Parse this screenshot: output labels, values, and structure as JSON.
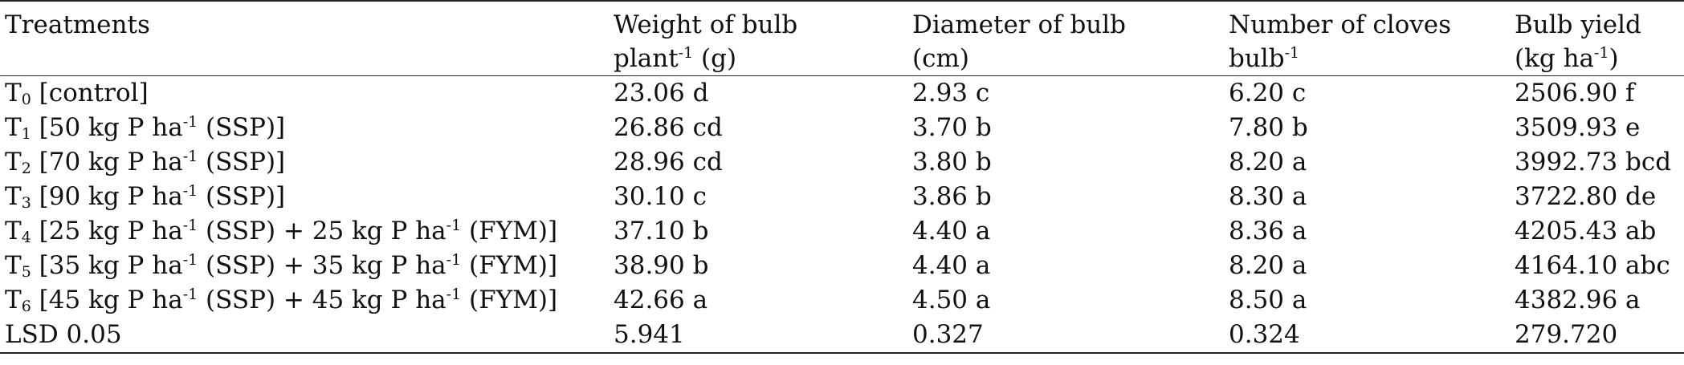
{
  "table": {
    "headers": [
      {
        "line1": "Treatments",
        "line2_main": "",
        "line2_sup": "",
        "line2_tail": ""
      },
      {
        "line1": "Weight of bulb",
        "line2_main": "plant",
        "line2_sup": "-1",
        "line2_tail": " (g)"
      },
      {
        "line1": "Diameter of bulb",
        "line2_main": "(cm)",
        "line2_sup": "",
        "line2_tail": ""
      },
      {
        "line1": "Number of cloves",
        "line2_main": "bulb",
        "line2_sup": "-1",
        "line2_tail": ""
      },
      {
        "line1": "Bulb yield",
        "line2_main": "(kg ha",
        "line2_sup": "-1",
        "line2_tail": ")"
      }
    ],
    "rows": [
      {
        "treatment": {
          "letter": "T",
          "sub": "0",
          "rest": " [control]",
          "sup1": "",
          "after_sup1": "",
          "sup2": "",
          "after_sup2": ""
        },
        "weight": "23.06 d",
        "diameter": "2.93 c",
        "cloves": "6.20 c",
        "yield": "2506.90 f"
      },
      {
        "treatment": {
          "letter": "T",
          "sub": "1",
          "rest": " [50 kg P ha",
          "sup1": "-1",
          "after_sup1": " (SSP)]",
          "sup2": "",
          "after_sup2": ""
        },
        "weight": "26.86 cd",
        "diameter": "3.70 b",
        "cloves": "7.80 b",
        "yield": "3509.93 e"
      },
      {
        "treatment": {
          "letter": "T",
          "sub": "2",
          "rest": " [70 kg P ha",
          "sup1": "-1",
          "after_sup1": " (SSP)]",
          "sup2": "",
          "after_sup2": ""
        },
        "weight": "28.96 cd",
        "diameter": "3.80 b",
        "cloves": "8.20 a",
        "yield": "3992.73 bcd"
      },
      {
        "treatment": {
          "letter": "T",
          "sub": "3",
          "rest": " [90 kg P ha",
          "sup1": "-1",
          "after_sup1": " (SSP)]",
          "sup2": "",
          "after_sup2": ""
        },
        "weight": "30.10 c",
        "diameter": "3.86 b",
        "cloves": "8.30 a",
        "yield": "3722.80 de"
      },
      {
        "treatment": {
          "letter": "T",
          "sub": "4",
          "rest": " [25 kg P ha",
          "sup1": "-1",
          "after_sup1": " (SSP) + 25 kg P ha",
          "sup2": "-1",
          "after_sup2": " (FYM)]"
        },
        "weight": "37.10 b",
        "diameter": "4.40 a",
        "cloves": "8.36 a",
        "yield": "4205.43 ab"
      },
      {
        "treatment": {
          "letter": "T",
          "sub": "5",
          "rest": " [35 kg P ha",
          "sup1": "-1",
          "after_sup1": " (SSP) + 35 kg P ha",
          "sup2": "-1",
          "after_sup2": " (FYM)]"
        },
        "weight": "38.90 b",
        "diameter": "4.40 a",
        "cloves": "8.20 a",
        "yield": "4164.10 abc"
      },
      {
        "treatment": {
          "letter": "T",
          "sub": "6",
          "rest": " [45 kg P ha",
          "sup1": "-1",
          "after_sup1": " (SSP) + 45 kg P ha",
          "sup2": "-1",
          "after_sup2": " (FYM)]"
        },
        "weight": "42.66 a",
        "diameter": "4.50 a",
        "cloves": "8.50 a",
        "yield": "4382.96 a"
      },
      {
        "treatment": {
          "letter": "LSD 0.05",
          "sub": "",
          "rest": "",
          "sup1": "",
          "after_sup1": "",
          "sup2": "",
          "after_sup2": ""
        },
        "weight": "5.941",
        "diameter": "0.327",
        "cloves": "0.324",
        "yield": "279.720"
      }
    ]
  }
}
